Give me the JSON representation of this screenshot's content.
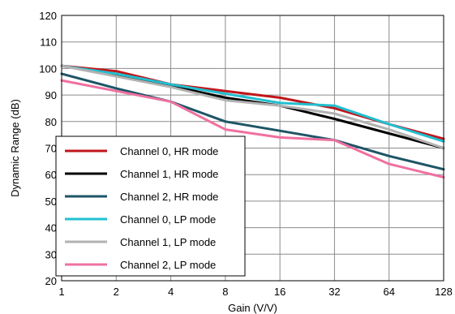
{
  "chart_data": {
    "type": "line",
    "title": "",
    "xlabel": "Gain (V/V)",
    "ylabel": "Dynamic Range (dB)",
    "x_scale": "log2",
    "x": [
      1,
      2,
      4,
      8,
      16,
      32,
      64,
      128
    ],
    "x_tick_labels": [
      "1",
      "2",
      "4",
      "8",
      "16",
      "32",
      "64",
      "128"
    ],
    "ylim": [
      20,
      120
    ],
    "y_ticks": [
      20,
      30,
      40,
      50,
      60,
      70,
      80,
      90,
      100,
      110,
      120
    ],
    "grid": true,
    "legend_position": "bottom-left",
    "series": [
      {
        "name": "Channel 0, HR mode",
        "color": "#c0161b",
        "values": [
          101,
          99,
          94,
          91.5,
          89,
          85,
          79,
          73.5
        ]
      },
      {
        "name": "Channel 1, HR mode",
        "color": "#000000",
        "values": [
          101,
          97.5,
          93.5,
          89,
          86,
          81,
          75.5,
          70
        ]
      },
      {
        "name": "Channel 2, HR mode",
        "color": "#1d5566",
        "values": [
          98,
          92.5,
          87.5,
          80,
          76.5,
          73,
          67,
          62
        ]
      },
      {
        "name": "Channel 0, LP mode",
        "color": "#21bfd0",
        "values": [
          101,
          98,
          94,
          90.5,
          87,
          86,
          79,
          72.5
        ]
      },
      {
        "name": "Channel 1, LP mode",
        "color": "#b2b2b2",
        "values": [
          101,
          97,
          93,
          88,
          86,
          83,
          77,
          70
        ]
      },
      {
        "name": "Channel 2, LP mode",
        "color": "#f070a0",
        "values": [
          95.5,
          91.5,
          87.5,
          77,
          74,
          73,
          64,
          59
        ]
      }
    ]
  }
}
